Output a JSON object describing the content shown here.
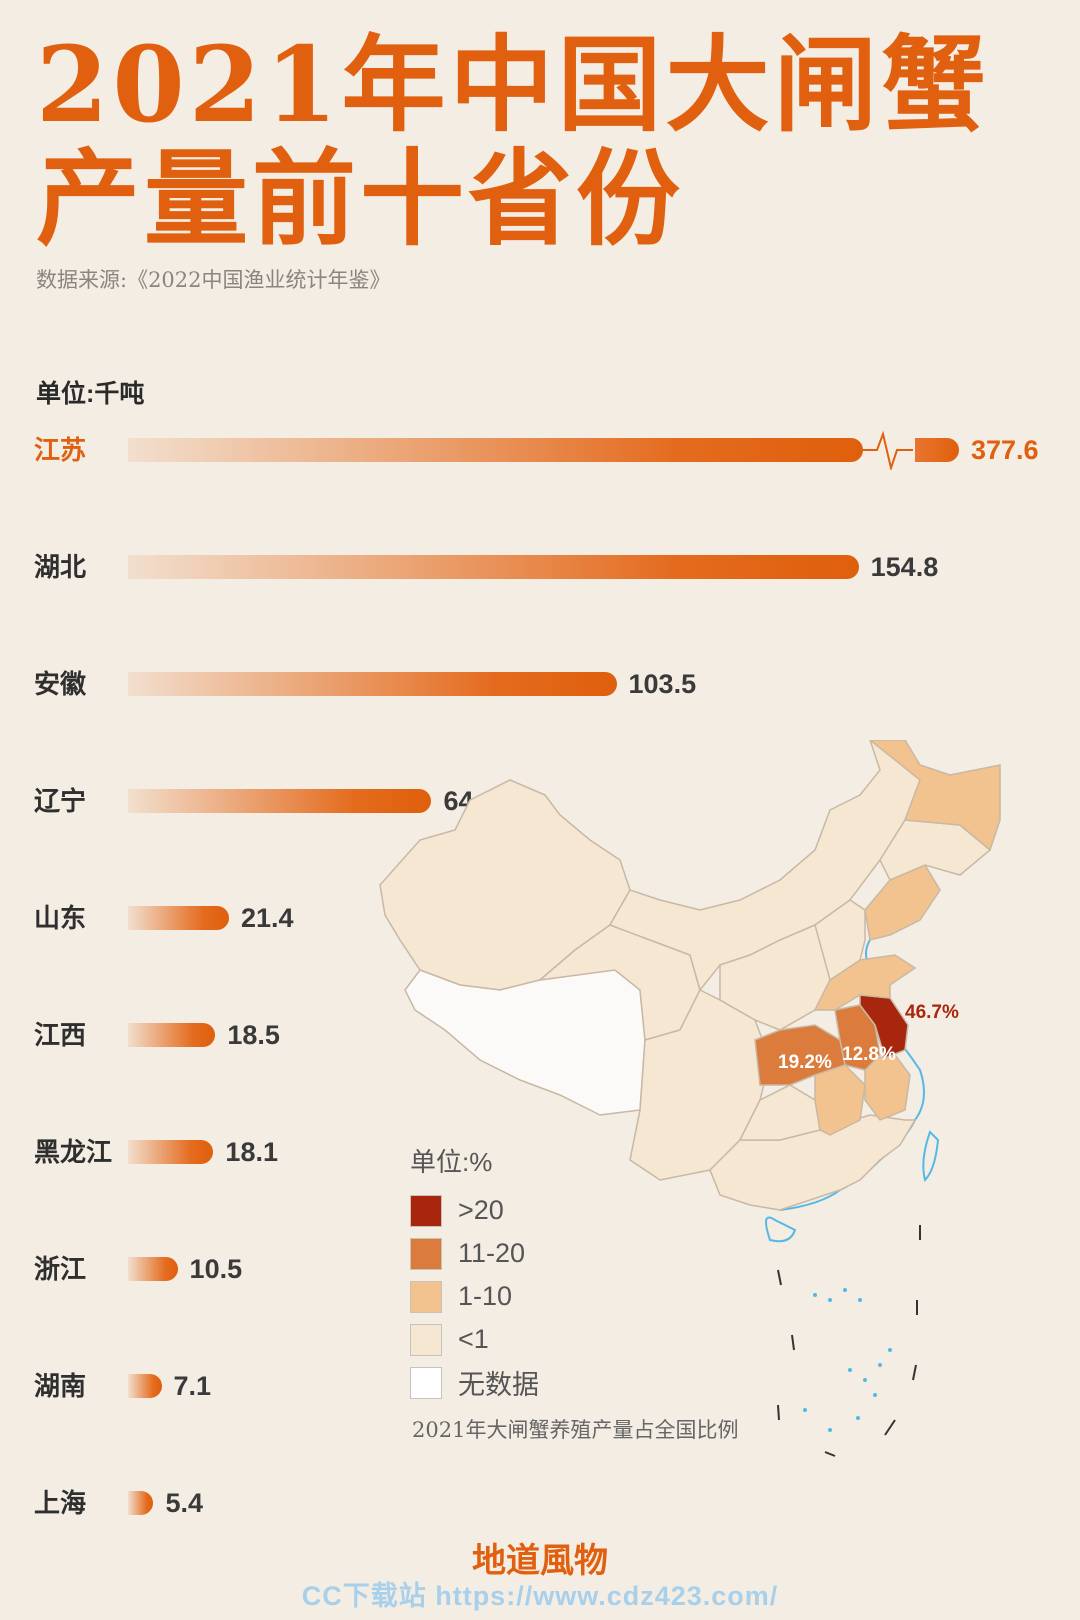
{
  "title": {
    "line1": "2021年中国大闸蟹",
    "line2": "产量前十省份"
  },
  "source": "数据来源:《2022中国渔业统计年鉴》",
  "unit": "单位:千吨",
  "chart_data": [
    {
      "type": "bar",
      "orientation": "horizontal",
      "title": "2021年中国大闸蟹产量前十省份",
      "unit": "单位:千吨",
      "axis_break": true,
      "categories": [
        "江苏",
        "湖北",
        "安徽",
        "辽宁",
        "山东",
        "江西",
        "黑龙江",
        "浙江",
        "湖南",
        "上海"
      ],
      "values": [
        377.6,
        154.8,
        103.5,
        64.3,
        21.4,
        18.5,
        18.1,
        10.5,
        7.1,
        5.4
      ],
      "value_labels": [
        "377.6",
        "154.8",
        "103.5",
        "64.3",
        "21.4",
        "18.5",
        "18.1",
        "10.5",
        "7.1",
        "5.4"
      ],
      "colors": {
        "bar": "#e0600f",
        "highlight_label": "#e0600f"
      }
    },
    {
      "type": "choropleth",
      "title": "2021年大闸蟹养殖产量占全国比例",
      "unit": "单位:%",
      "annotations": [
        {
          "region": "江苏",
          "label": "46.7%"
        },
        {
          "region": "湖北",
          "label": "19.2%"
        },
        {
          "region": "安徽",
          "label": "12.8%"
        }
      ],
      "legend": [
        {
          "label": ">20",
          "color": "#a8260e"
        },
        {
          "label": "11-20",
          "color": "#dc7c3c"
        },
        {
          "label": "1-10",
          "color": "#f3c38f"
        },
        {
          "label": "<1",
          "color": "#f6e7d3"
        },
        {
          "label": "无数据",
          "color": "#ffffff"
        }
      ]
    }
  ],
  "brand": "地道風物",
  "watermark": "CC下载站 https://www.cdz423.com/"
}
